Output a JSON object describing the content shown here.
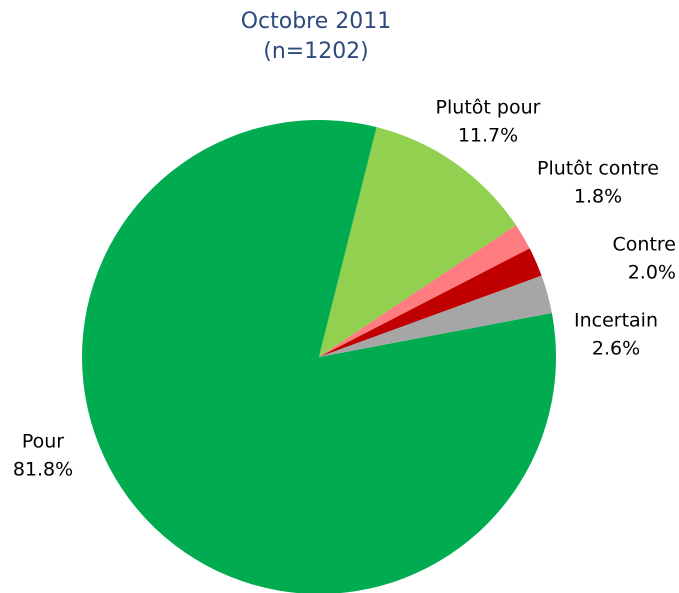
{
  "chart_data": {
    "type": "pie",
    "title": "Octobre 2011",
    "subtitle": "(n=1202)",
    "categories": [
      "Pour",
      "Plutôt pour",
      "Plutôt contre",
      "Contre",
      "Incertain"
    ],
    "values": [
      81.8,
      11.7,
      1.8,
      2.0,
      2.6
    ],
    "value_labels": [
      "81.8%",
      "11.7%",
      "1.8%",
      "2.0%",
      "2.6%"
    ],
    "colors": [
      "#00ac4f",
      "#92d050",
      "#ff7c80",
      "#c00000",
      "#a6a6a6"
    ]
  }
}
